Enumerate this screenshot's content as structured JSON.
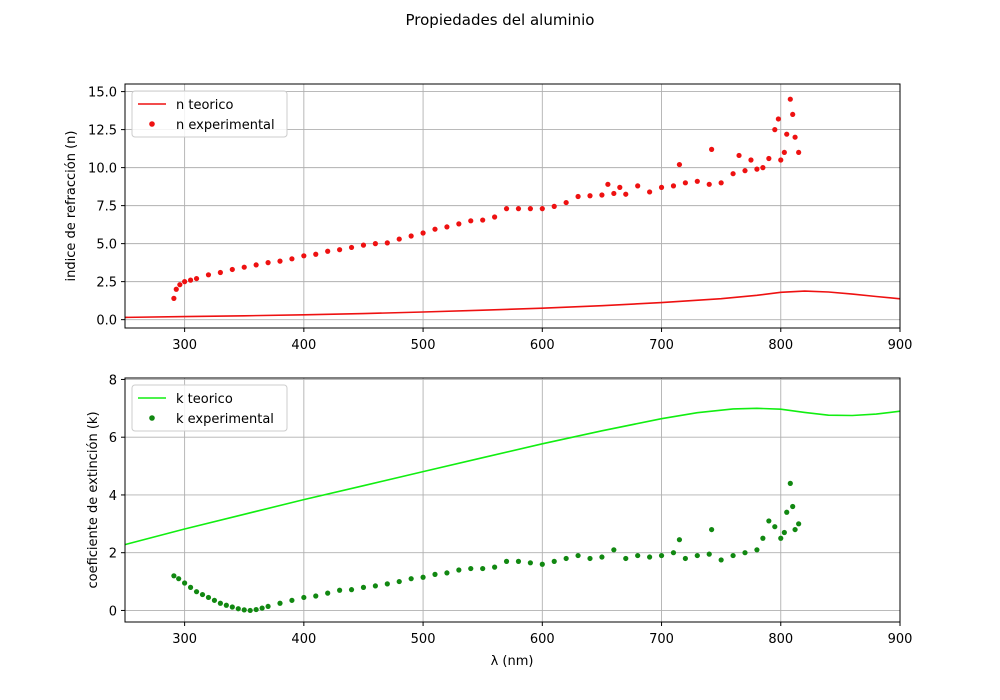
{
  "figure": {
    "title": "Propiedades del aluminio"
  },
  "chart_data": [
    {
      "type": "line",
      "title": "",
      "xlabel": "",
      "ylabel": "indice de refracción (n)",
      "xlim": [
        250,
        900
      ],
      "ylim": [
        -0.55,
        15.5
      ],
      "xticks": [
        300,
        400,
        500,
        600,
        700,
        800,
        900
      ],
      "yticks": [
        0.0,
        2.5,
        5.0,
        7.5,
        10.0,
        12.5,
        15.0
      ],
      "xtick_labels": [
        "300",
        "400",
        "500",
        "600",
        "700",
        "800",
        "900"
      ],
      "ytick_labels": [
        "0.0",
        "2.5",
        "5.0",
        "7.5",
        "10.0",
        "12.5",
        "15.0"
      ],
      "grid": true,
      "legend_position": "upper-left",
      "series": [
        {
          "name": "n teorico",
          "kind": "line",
          "color": "#ee1111",
          "x": [
            250,
            300,
            350,
            400,
            450,
            500,
            550,
            600,
            650,
            700,
            750,
            780,
            800,
            820,
            840,
            860,
            880,
            900
          ],
          "y": [
            0.15,
            0.2,
            0.25,
            0.32,
            0.4,
            0.5,
            0.62,
            0.75,
            0.92,
            1.12,
            1.38,
            1.6,
            1.8,
            1.88,
            1.82,
            1.68,
            1.52,
            1.37
          ]
        },
        {
          "name": "n experimental",
          "kind": "scatter",
          "color": "#ee1111",
          "x": [
            291,
            293,
            296,
            300,
            305,
            310,
            320,
            330,
            340,
            350,
            360,
            370,
            380,
            390,
            400,
            410,
            420,
            430,
            440,
            450,
            460,
            470,
            480,
            490,
            500,
            510,
            520,
            530,
            540,
            550,
            560,
            570,
            580,
            590,
            600,
            610,
            620,
            630,
            640,
            650,
            655,
            660,
            665,
            670,
            680,
            690,
            700,
            710,
            715,
            720,
            730,
            740,
            742,
            750,
            760,
            765,
            770,
            775,
            780,
            785,
            790,
            795,
            798,
            800,
            803,
            805,
            808,
            810,
            812,
            815
          ],
          "y": [
            1.4,
            2.0,
            2.3,
            2.5,
            2.6,
            2.7,
            2.95,
            3.1,
            3.3,
            3.45,
            3.6,
            3.75,
            3.85,
            4.0,
            4.2,
            4.3,
            4.5,
            4.6,
            4.75,
            4.9,
            5.0,
            5.05,
            5.3,
            5.5,
            5.7,
            5.95,
            6.1,
            6.3,
            6.5,
            6.55,
            6.75,
            7.3,
            7.3,
            7.3,
            7.3,
            7.45,
            7.7,
            8.1,
            8.15,
            8.2,
            8.9,
            8.3,
            8.7,
            8.25,
            8.8,
            8.4,
            8.7,
            8.8,
            10.2,
            9.0,
            9.1,
            8.9,
            11.2,
            9.0,
            9.6,
            10.8,
            9.8,
            10.5,
            9.9,
            10.0,
            10.6,
            12.5,
            13.2,
            10.5,
            11.0,
            12.2,
            14.5,
            13.5,
            12.0,
            11.0
          ]
        }
      ]
    },
    {
      "type": "line",
      "title": "",
      "xlabel": "λ (nm)",
      "ylabel": "coeficiente de extinción (k)",
      "xlim": [
        250,
        900
      ],
      "ylim": [
        -0.4,
        8.05
      ],
      "xticks": [
        300,
        400,
        500,
        600,
        700,
        800,
        900
      ],
      "yticks": [
        0,
        2,
        4,
        6,
        8
      ],
      "xtick_labels": [
        "300",
        "400",
        "500",
        "600",
        "700",
        "800",
        "900"
      ],
      "ytick_labels": [
        "0",
        "2",
        "4",
        "6",
        "8"
      ],
      "grid": true,
      "legend_position": "upper-left",
      "series": [
        {
          "name": "k teorico",
          "kind": "line",
          "color": "#11ee11",
          "x": [
            250,
            300,
            350,
            400,
            450,
            500,
            550,
            600,
            650,
            700,
            730,
            760,
            780,
            800,
            820,
            840,
            860,
            880,
            900
          ],
          "y": [
            2.28,
            2.82,
            3.33,
            3.84,
            4.32,
            4.81,
            5.29,
            5.77,
            6.22,
            6.64,
            6.85,
            6.98,
            7.0,
            6.97,
            6.86,
            6.76,
            6.75,
            6.8,
            6.9
          ]
        },
        {
          "name": "k experimental",
          "kind": "scatter",
          "color": "#118811",
          "x": [
            291,
            295,
            300,
            305,
            310,
            315,
            320,
            325,
            330,
            335,
            340,
            345,
            350,
            355,
            360,
            365,
            370,
            380,
            390,
            400,
            410,
            420,
            430,
            440,
            450,
            460,
            470,
            480,
            490,
            500,
            510,
            520,
            530,
            540,
            550,
            560,
            570,
            580,
            590,
            600,
            610,
            620,
            630,
            640,
            650,
            660,
            670,
            680,
            690,
            700,
            710,
            715,
            720,
            730,
            740,
            742,
            750,
            760,
            770,
            780,
            785,
            790,
            795,
            800,
            803,
            805,
            808,
            810,
            812,
            815
          ],
          "y": [
            1.2,
            1.1,
            0.95,
            0.8,
            0.65,
            0.55,
            0.45,
            0.35,
            0.25,
            0.18,
            0.12,
            0.06,
            0.02,
            0.0,
            0.03,
            0.08,
            0.14,
            0.25,
            0.35,
            0.45,
            0.5,
            0.6,
            0.7,
            0.72,
            0.8,
            0.85,
            0.92,
            1.0,
            1.1,
            1.15,
            1.25,
            1.3,
            1.4,
            1.45,
            1.45,
            1.5,
            1.7,
            1.7,
            1.65,
            1.6,
            1.7,
            1.8,
            1.9,
            1.8,
            1.85,
            2.1,
            1.8,
            1.9,
            1.85,
            1.9,
            2.0,
            2.45,
            1.8,
            1.9,
            1.95,
            2.8,
            1.75,
            1.9,
            2.0,
            2.1,
            2.5,
            3.1,
            2.9,
            2.5,
            2.7,
            3.4,
            4.4,
            3.6,
            2.8,
            3.0
          ]
        }
      ]
    }
  ]
}
